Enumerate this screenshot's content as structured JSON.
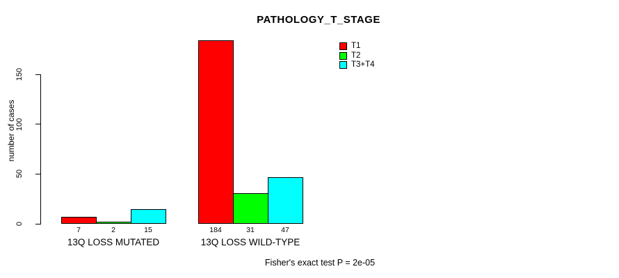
{
  "title": "PATHOLOGY_T_STAGE",
  "y_axis": {
    "label": "number of cases",
    "tick_labels": [
      "0",
      "50",
      "100",
      "150"
    ]
  },
  "footer": {
    "text": "Fisher's exact test P = 2e-05"
  },
  "colors": {
    "t1": "#ff0000",
    "t2": "#00ff00",
    "t3_t4": "#00ffff",
    "bar_border": "#000000",
    "axis": "#000000",
    "background": "#ffffff"
  },
  "chart_data": {
    "type": "bar",
    "title": "PATHOLOGY_T_STAGE",
    "xlabel": "",
    "ylabel": "number of cases",
    "categories": [
      "13Q LOSS MUTATED",
      "13Q LOSS WILD-TYPE"
    ],
    "series": [
      {
        "name": "T1",
        "color": "#ff0000",
        "values": [
          7,
          184
        ]
      },
      {
        "name": "T2",
        "color": "#00ff00",
        "values": [
          2,
          31
        ]
      },
      {
        "name": "T3+T4",
        "color": "#00ffff",
        "values": [
          15,
          47
        ]
      }
    ],
    "bar_value_labels": [
      [
        7,
        2,
        15
      ],
      [
        184,
        31,
        47
      ]
    ],
    "yticks": [
      0,
      50,
      100,
      150
    ],
    "ylim": [
      0,
      190
    ],
    "grid": false,
    "legend_position": "top-right",
    "annotation": "Fisher's exact test P = 2e-05"
  }
}
